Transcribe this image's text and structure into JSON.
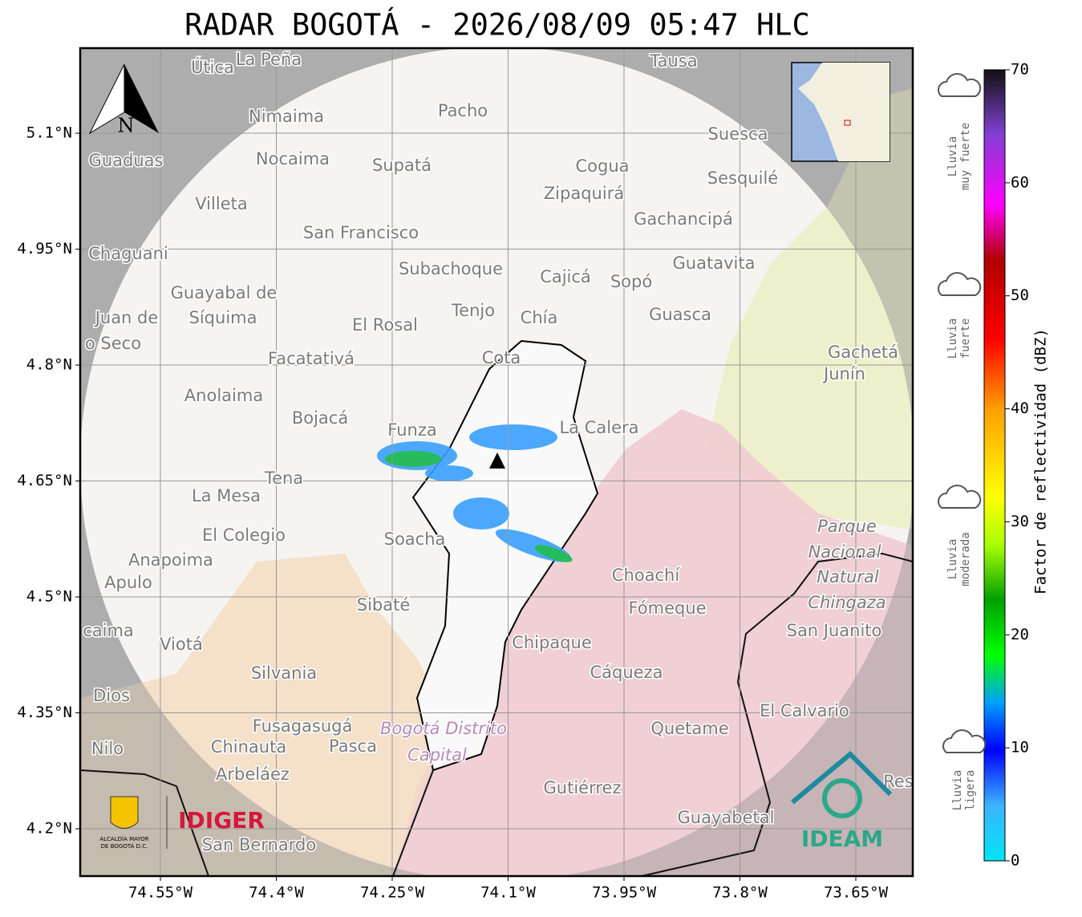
{
  "title": "RADAR BOGOTÁ - 2026/08/09 05:47 HLC",
  "map": {
    "lonlim": [
      -74.6538,
      -73.5763
    ],
    "latlim": [
      4.1388,
      5.2101
    ],
    "lon_ticks": [
      {
        "value": -74.55,
        "label": "74.55°W"
      },
      {
        "value": -74.4,
        "label": "74.4°W"
      },
      {
        "value": -74.25,
        "label": "74.25°W"
      },
      {
        "value": -74.1,
        "label": "74.1°W"
      },
      {
        "value": -73.95,
        "label": "73.95°W"
      },
      {
        "value": -73.8,
        "label": "73.8°W"
      },
      {
        "value": -73.65,
        "label": "73.65°W"
      }
    ],
    "lat_ticks": [
      {
        "value": 5.1,
        "label": "5.1°N"
      },
      {
        "value": 4.95,
        "label": "4.95°N"
      },
      {
        "value": 4.8,
        "label": "4.8°N"
      },
      {
        "value": 4.65,
        "label": "4.65°N"
      },
      {
        "value": 4.5,
        "label": "4.5°N"
      },
      {
        "value": 4.35,
        "label": "4.35°N"
      },
      {
        "value": 4.2,
        "label": "4.2°N"
      }
    ],
    "north": "N",
    "places": [
      "Útica",
      "La Peña",
      "Tausa",
      "Nimaima",
      "Pacho",
      "Guaduas",
      "Nocaima",
      "Supatá",
      "Cogua",
      "Suesca",
      "Zipaquirá",
      "Sesquilé",
      "Villeta",
      "Gachancipá",
      "San Francisco",
      "Chaguani",
      "Guatavita",
      "Subachoque",
      "Cajicá",
      "Sopó",
      "Guayabal de",
      "Tenjo",
      "Síquima",
      "Guasca",
      "Juan de",
      "Chía",
      "El Rosal",
      "o Seco",
      "Gachetá",
      "Facatativá",
      "Cota",
      "Junín",
      "Anolaima",
      "Bojacá",
      "Funza",
      "La Calera",
      "Tena",
      "La Mesa",
      "El Colegio",
      "Parque",
      "Soacha",
      "Nacional",
      "Anapoima",
      "Natural",
      "Choachí",
      "Apulo",
      "Chingaza",
      "Sibaté",
      "Fómeque",
      "San Juanito",
      "caima",
      "Viotá",
      "Chipaque",
      "Silvania",
      "Cáqueza",
      "Dios",
      "El Calvario",
      "Fusagasugá",
      "Bogotá Distrito",
      "Quetame",
      "Nilo",
      "Chinauta",
      "Pasca",
      "Capital",
      "Arbeláez",
      "Gutiérrez",
      "Guayabetal",
      "San Bernardo",
      "Res"
    ]
  },
  "colorbar": {
    "label": "Factor de reflectividad (dBZ)",
    "range": [
      0,
      70
    ],
    "ticks": [
      0,
      10,
      20,
      30,
      40,
      50,
      60,
      70
    ]
  },
  "legend": [
    [
      "Lluvia",
      "muy fuerte"
    ],
    [
      "Lluvia",
      "fuerte"
    ],
    [
      "Lluvia",
      "moderada"
    ],
    [
      "Lluvia",
      "ligera"
    ]
  ],
  "logos": {
    "alcaldia": [
      "ALCALDÍA MAYOR",
      "DE BOGOTÁ D.C."
    ],
    "idiger": "IDIGER",
    "ideam": "IDEAM"
  }
}
